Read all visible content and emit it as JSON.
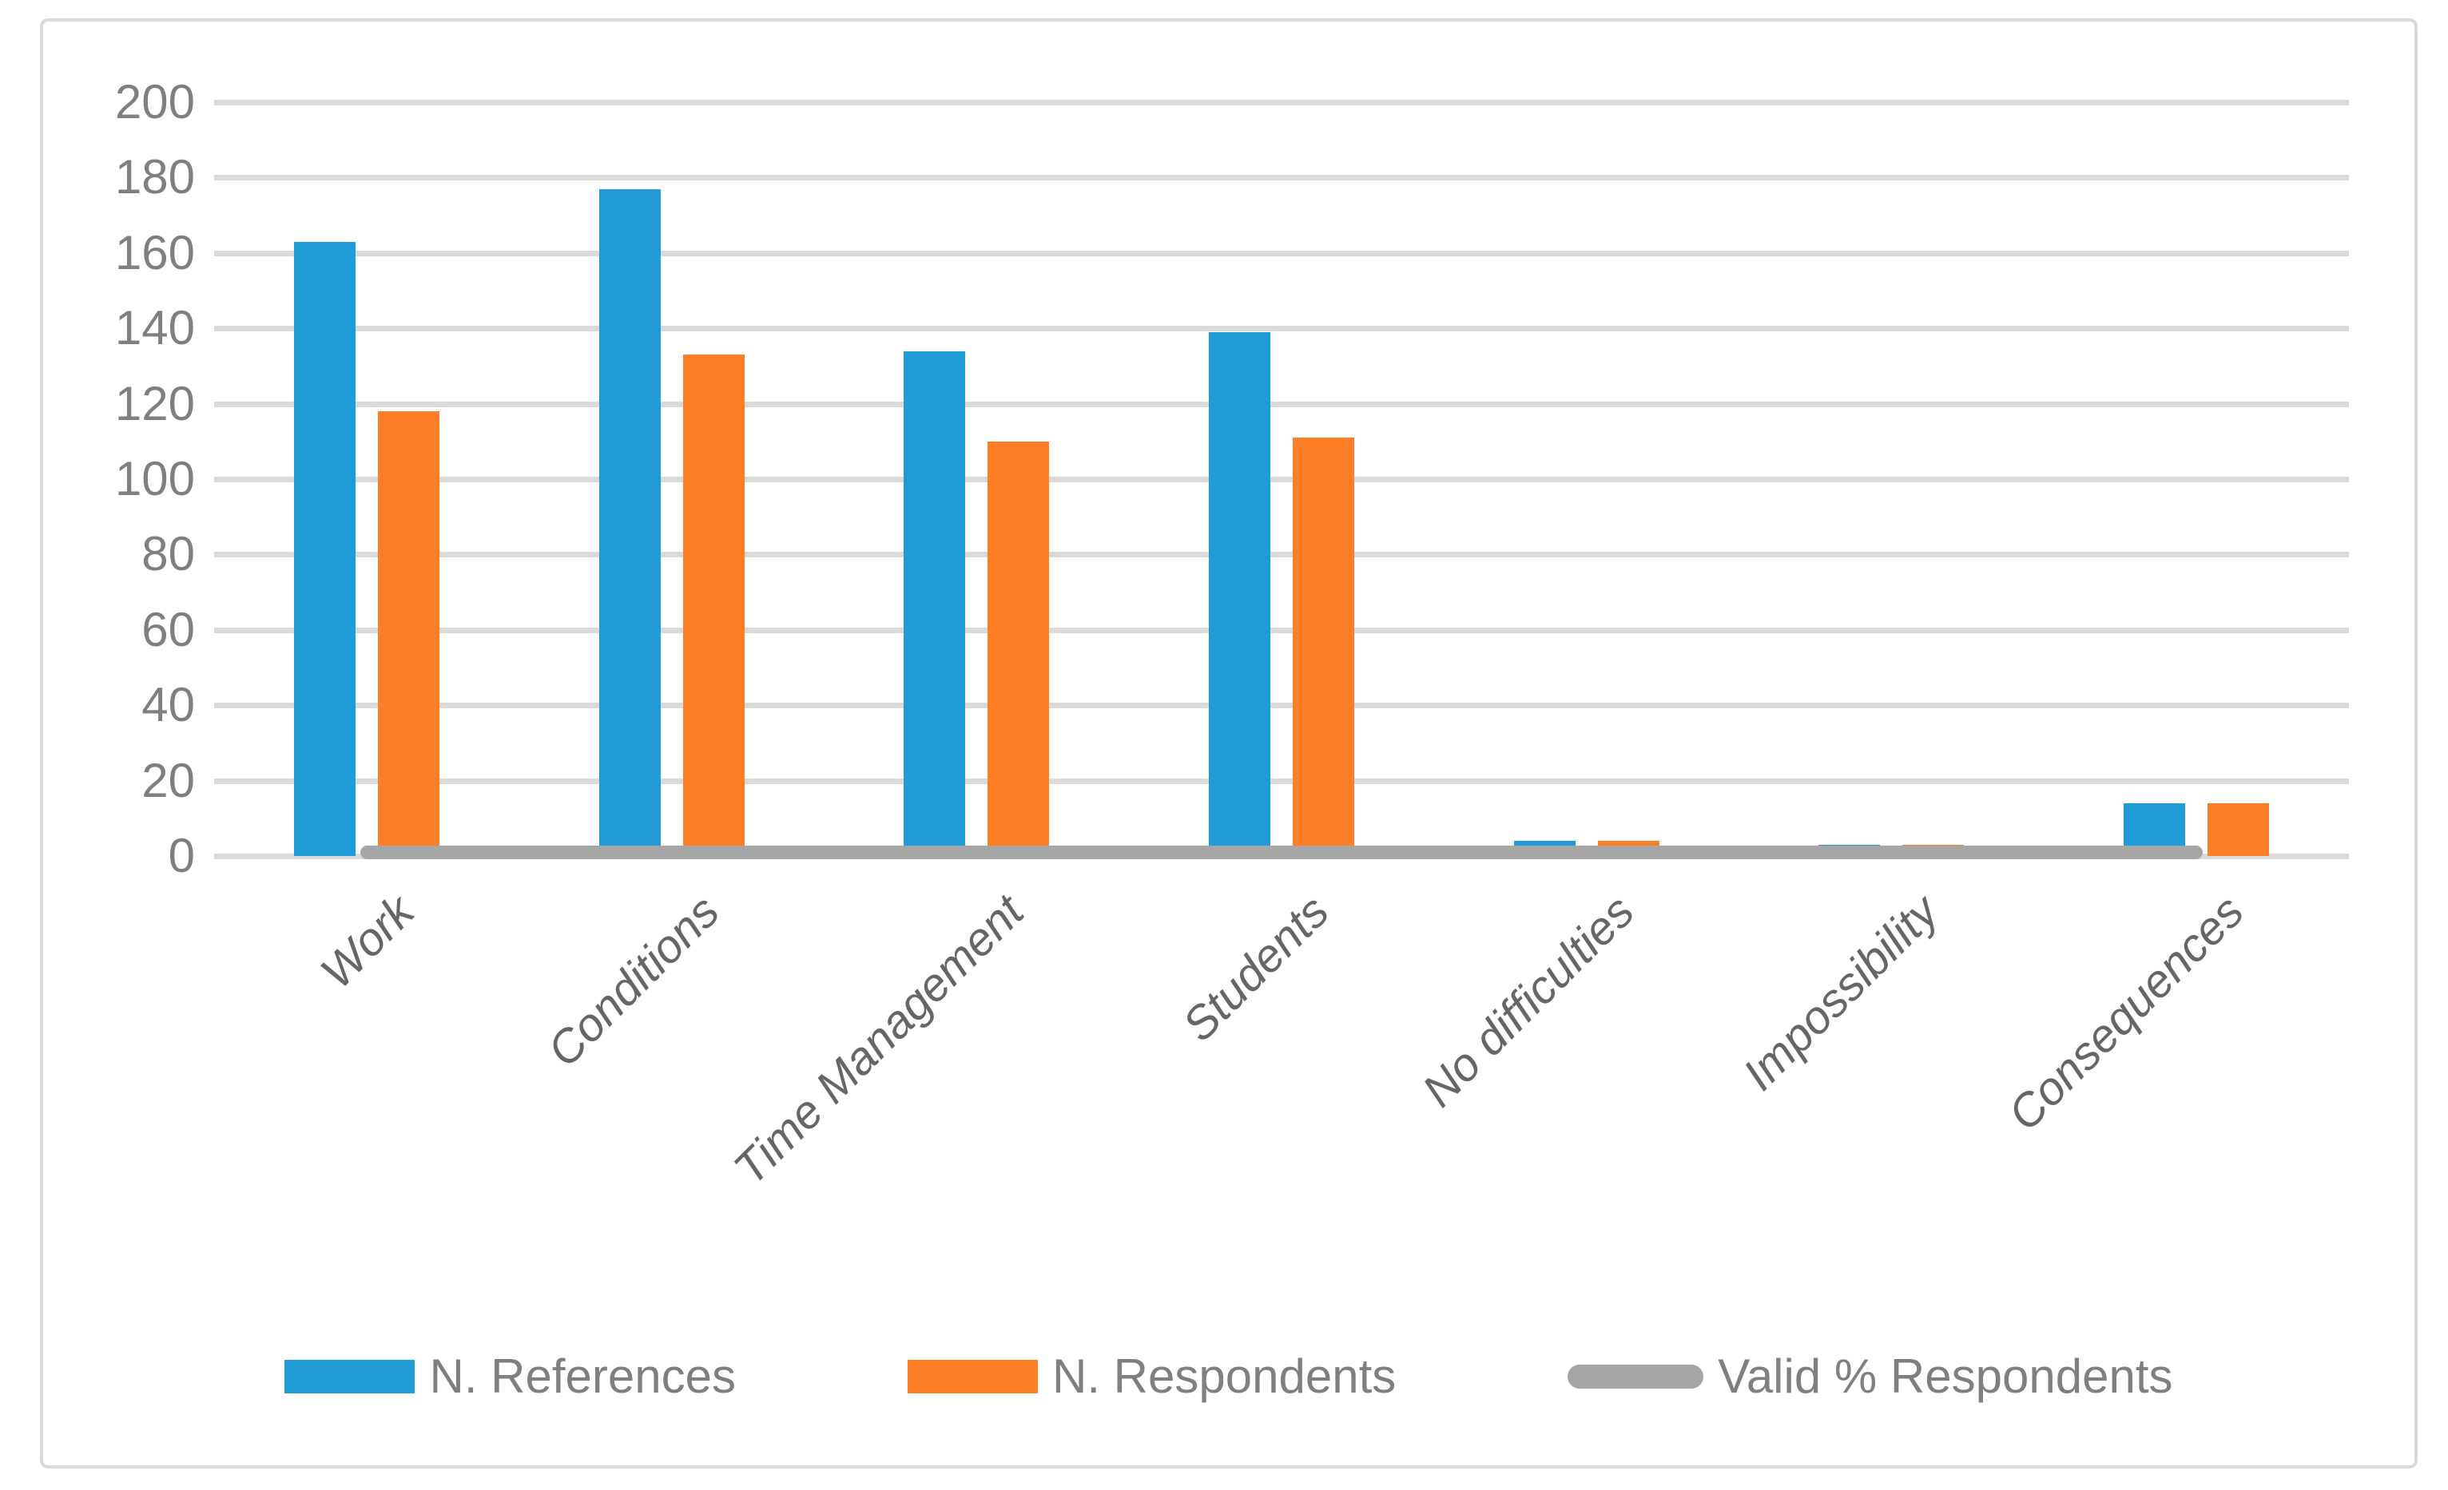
{
  "figure": {
    "background": "#FFFFFF",
    "border_color": "#D9D9D9"
  },
  "colors": {
    "gridline": "#D9D9D9",
    "y_tick_text": "#7F7F7F",
    "category_text": "#666666",
    "legend_text": "#7F7F7F"
  },
  "chart_data": {
    "type": "bar",
    "title": "",
    "xlabel": "",
    "ylabel": "",
    "categories": [
      "Work",
      "Conditions",
      "Time Management",
      "Students",
      "No difficulties",
      "Impossibility",
      "Consequences"
    ],
    "series": [
      {
        "name": "N. References",
        "type": "bar",
        "color": "#1F9CD8",
        "values": [
          163,
          177,
          134,
          139,
          4,
          3,
          14
        ]
      },
      {
        "name": "N. Respondents",
        "type": "bar",
        "color": "#FC7E26",
        "values": [
          118,
          133,
          110,
          111,
          4,
          3,
          14
        ]
      },
      {
        "name": "Valid % Respondents",
        "type": "line",
        "color": "#A6A6A6",
        "values": [
          1,
          1,
          1,
          1,
          1,
          1,
          1
        ]
      }
    ],
    "ylim": [
      0,
      200
    ],
    "yticks": [
      0,
      20,
      40,
      60,
      80,
      100,
      120,
      140,
      160,
      180,
      200
    ],
    "grid": true,
    "legend_position": "bottom",
    "x_label_rotation_deg": -45,
    "x_label_style": "italic"
  }
}
